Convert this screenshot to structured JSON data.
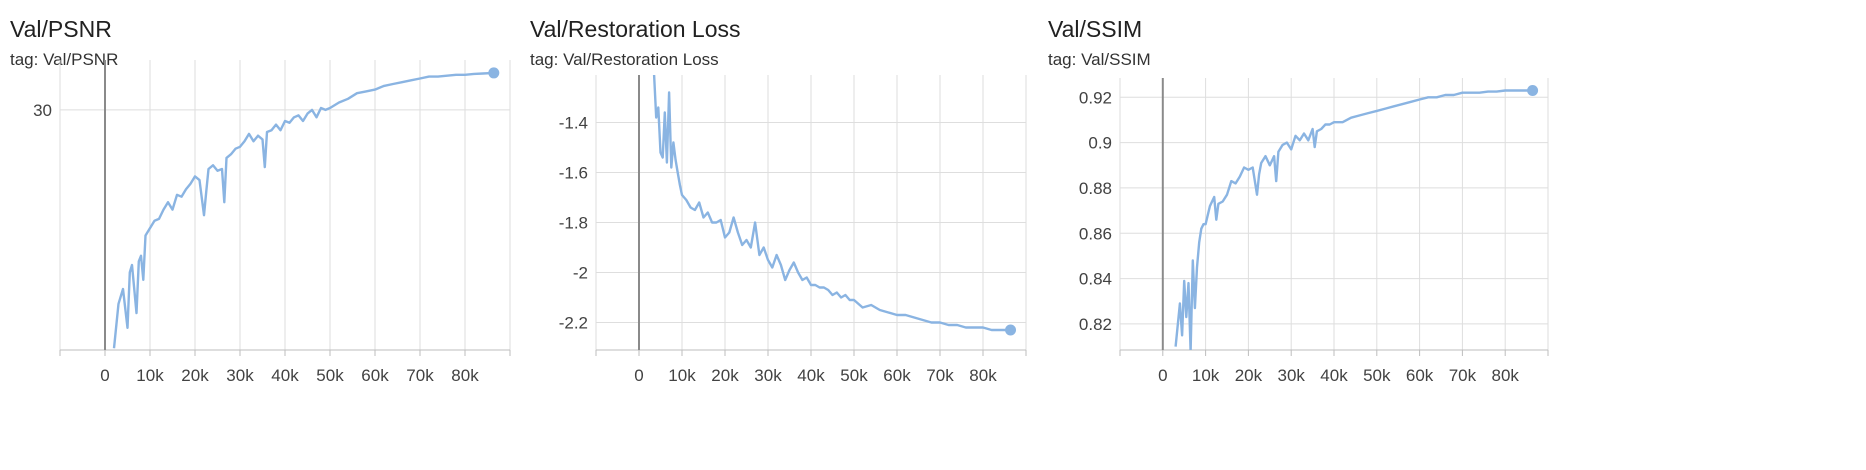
{
  "chart_data": [
    {
      "type": "line",
      "title": "Val/PSNR",
      "tag": "tag: Val/PSNR",
      "x_ticks": [
        "0",
        "10k",
        "20k",
        "30k",
        "40k",
        "50k",
        "60k",
        "70k",
        "80k"
      ],
      "y_ticks": [
        "30"
      ],
      "xlim": [
        -10000,
        90000
      ],
      "ylim": [
        17.0,
        32.7
      ],
      "grid": true,
      "color": "#8ab4e2",
      "series": [
        {
          "x": [
            2000,
            3000,
            4000,
            5000,
            5500,
            6000,
            7000,
            7500,
            8000,
            8500,
            9000,
            10000,
            11000,
            12000,
            13000,
            14000,
            15000,
            16000,
            17000,
            18000,
            19000,
            20000,
            21000,
            22000,
            22500,
            23000,
            24000,
            25000,
            26000,
            26500,
            27000,
            28000,
            29000,
            30000,
            31000,
            32000,
            33000,
            34000,
            35000,
            35500,
            36000,
            37000,
            38000,
            39000,
            40000,
            41000,
            42000,
            43000,
            44000,
            45000,
            46000,
            47000,
            48000,
            49000,
            50000,
            52000,
            54000,
            56000,
            58000,
            60000,
            62000,
            64000,
            66000,
            68000,
            70000,
            72000,
            74000,
            76000,
            78000,
            80000,
            82000,
            84000,
            86400
          ],
          "values": [
            17.1,
            19.5,
            20.3,
            18.2,
            21.2,
            21.6,
            19.0,
            21.8,
            22.1,
            20.8,
            23.2,
            23.6,
            24.0,
            24.1,
            24.6,
            25.0,
            24.6,
            25.4,
            25.3,
            25.7,
            26.0,
            26.4,
            26.2,
            24.3,
            25.6,
            26.8,
            27.0,
            26.7,
            26.8,
            25.0,
            27.4,
            27.6,
            27.9,
            28.0,
            28.3,
            28.7,
            28.3,
            28.6,
            28.4,
            26.9,
            28.8,
            28.9,
            29.2,
            28.9,
            29.4,
            29.3,
            29.6,
            29.7,
            29.4,
            29.8,
            30.0,
            29.6,
            30.1,
            30.0,
            30.1,
            30.4,
            30.6,
            30.9,
            31.0,
            31.1,
            31.3,
            31.4,
            31.5,
            31.6,
            31.7,
            31.8,
            31.8,
            31.85,
            31.9,
            31.9,
            31.95,
            31.97,
            32.0
          ]
        }
      ]
    },
    {
      "type": "line",
      "title": "Val/Restoration Loss",
      "tag": "tag: Val/Restoration Loss",
      "x_ticks": [
        "0",
        "10k",
        "20k",
        "30k",
        "40k",
        "50k",
        "60k",
        "70k",
        "80k"
      ],
      "y_ticks": [
        "-1.4",
        "-1.6",
        "-1.8",
        "-2",
        "-2.2"
      ],
      "xlim": [
        -10000,
        90000
      ],
      "ylim": [
        -2.31,
        -1.21
      ],
      "grid": true,
      "color": "#8ab4e2",
      "series": [
        {
          "x": [
            3500,
            4000,
            4500,
            5000,
            5500,
            6000,
            6500,
            7000,
            7500,
            8000,
            8500,
            9000,
            9500,
            10000,
            11000,
            12000,
            13000,
            14000,
            15000,
            16000,
            17000,
            18000,
            19000,
            20000,
            21000,
            22000,
            23000,
            24000,
            25000,
            26000,
            27000,
            28000,
            29000,
            30000,
            31000,
            32000,
            33000,
            34000,
            35000,
            36000,
            37000,
            38000,
            39000,
            40000,
            41000,
            42000,
            43000,
            44000,
            45000,
            46000,
            47000,
            48000,
            49000,
            50000,
            52000,
            54000,
            56000,
            58000,
            60000,
            62000,
            64000,
            66000,
            68000,
            70000,
            72000,
            74000,
            76000,
            78000,
            80000,
            82000,
            84000,
            86400
          ],
          "values": [
            -1.21,
            -1.38,
            -1.34,
            -1.52,
            -1.54,
            -1.36,
            -1.56,
            -1.28,
            -1.58,
            -1.48,
            -1.55,
            -1.6,
            -1.65,
            -1.69,
            -1.71,
            -1.74,
            -1.75,
            -1.72,
            -1.78,
            -1.76,
            -1.8,
            -1.8,
            -1.79,
            -1.86,
            -1.84,
            -1.78,
            -1.84,
            -1.89,
            -1.87,
            -1.9,
            -1.8,
            -1.93,
            -1.9,
            -1.95,
            -1.98,
            -1.93,
            -1.97,
            -2.03,
            -1.99,
            -1.96,
            -2.0,
            -2.03,
            -2.02,
            -2.05,
            -2.05,
            -2.06,
            -2.06,
            -2.07,
            -2.09,
            -2.08,
            -2.1,
            -2.09,
            -2.11,
            -2.11,
            -2.14,
            -2.13,
            -2.15,
            -2.16,
            -2.17,
            -2.17,
            -2.18,
            -2.19,
            -2.2,
            -2.2,
            -2.21,
            -2.21,
            -2.22,
            -2.22,
            -2.22,
            -2.23,
            -2.23,
            -2.23
          ]
        }
      ]
    },
    {
      "type": "line",
      "title": "Val/SSIM",
      "tag": "tag: Val/SSIM",
      "x_ticks": [
        "0",
        "10k",
        "20k",
        "30k",
        "40k",
        "50k",
        "60k",
        "70k",
        "80k"
      ],
      "y_ticks": [
        "0.92",
        "0.9",
        "0.88",
        "0.86",
        "0.84",
        "0.82"
      ],
      "xlim": [
        -10000,
        90000
      ],
      "ylim": [
        0.8085,
        0.9285
      ],
      "grid": true,
      "color": "#8ab4e2",
      "series": [
        {
          "x": [
            3000,
            4000,
            4500,
            5000,
            5500,
            6000,
            6500,
            7000,
            7500,
            8000,
            8500,
            9000,
            9500,
            10000,
            11000,
            12000,
            12500,
            13000,
            14000,
            15000,
            16000,
            17000,
            18000,
            19000,
            20000,
            21000,
            22000,
            22500,
            23000,
            24000,
            25000,
            26000,
            26500,
            27000,
            28000,
            29000,
            30000,
            31000,
            32000,
            33000,
            34000,
            35000,
            35500,
            36000,
            37000,
            38000,
            39000,
            40000,
            42000,
            44000,
            46000,
            48000,
            50000,
            52000,
            54000,
            56000,
            58000,
            60000,
            62000,
            64000,
            66000,
            68000,
            70000,
            72000,
            74000,
            76000,
            78000,
            80000,
            82000,
            84000,
            86400
          ],
          "values": [
            0.81,
            0.829,
            0.815,
            0.839,
            0.823,
            0.838,
            0.808,
            0.848,
            0.827,
            0.845,
            0.856,
            0.862,
            0.864,
            0.864,
            0.872,
            0.876,
            0.866,
            0.873,
            0.874,
            0.877,
            0.883,
            0.882,
            0.885,
            0.889,
            0.888,
            0.889,
            0.877,
            0.886,
            0.891,
            0.894,
            0.89,
            0.894,
            0.883,
            0.896,
            0.899,
            0.9,
            0.897,
            0.903,
            0.901,
            0.904,
            0.901,
            0.906,
            0.898,
            0.905,
            0.906,
            0.908,
            0.908,
            0.909,
            0.909,
            0.911,
            0.912,
            0.913,
            0.914,
            0.915,
            0.916,
            0.917,
            0.918,
            0.919,
            0.92,
            0.92,
            0.921,
            0.921,
            0.922,
            0.922,
            0.922,
            0.9225,
            0.9225,
            0.923,
            0.923,
            0.923,
            0.923
          ]
        }
      ]
    }
  ]
}
